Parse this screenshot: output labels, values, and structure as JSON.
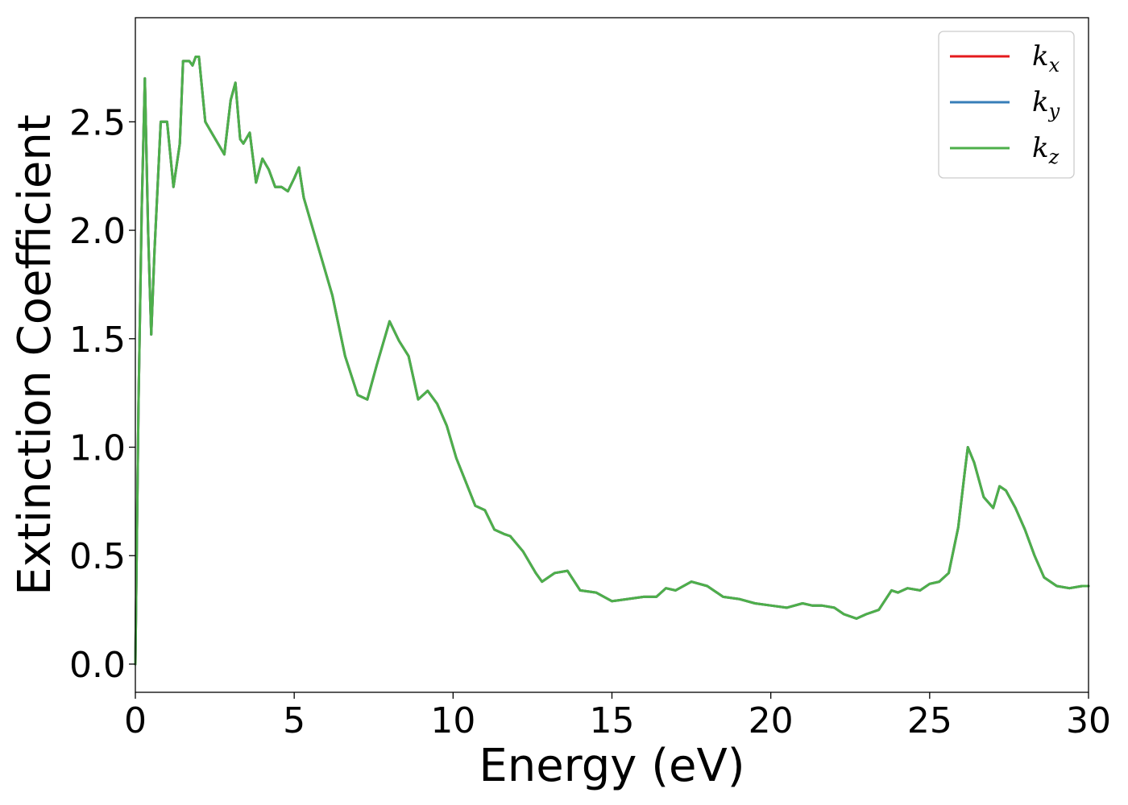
{
  "chart_data": {
    "type": "line",
    "title": "",
    "xlabel": "Energy (eV)",
    "ylabel": "Extinction Coefficient",
    "xlim": [
      0,
      30
    ],
    "ylim": [
      -0.13,
      2.98
    ],
    "xticks": [
      0,
      5,
      10,
      15,
      20,
      25,
      30
    ],
    "xtick_labels": [
      "0",
      "5",
      "10",
      "15",
      "20",
      "25",
      "30"
    ],
    "yticks": [
      0.0,
      0.5,
      1.0,
      1.5,
      2.0,
      2.5
    ],
    "ytick_labels": [
      "0.0",
      "0.5",
      "1.0",
      "1.5",
      "2.0",
      "2.5"
    ],
    "grid": false,
    "legend_position": "top-right",
    "x": [
      0,
      0.1,
      0.2,
      0.3,
      0.4,
      0.5,
      0.6,
      0.8,
      1.0,
      1.2,
      1.4,
      1.5,
      1.7,
      1.8,
      1.9,
      2.0,
      2.2,
      2.4,
      2.6,
      2.8,
      3.0,
      3.15,
      3.3,
      3.4,
      3.6,
      3.8,
      4.0,
      4.2,
      4.4,
      4.6,
      4.8,
      5.0,
      5.15,
      5.3,
      5.6,
      5.9,
      6.2,
      6.6,
      7.0,
      7.3,
      7.6,
      8.0,
      8.3,
      8.6,
      8.9,
      9.2,
      9.5,
      9.8,
      10.1,
      10.4,
      10.7,
      11.0,
      11.3,
      11.6,
      11.8,
      12.2,
      12.6,
      12.8,
      13.2,
      13.6,
      14.0,
      14.5,
      15.0,
      15.5,
      16.0,
      16.4,
      16.7,
      17.0,
      17.5,
      18.0,
      18.5,
      19.0,
      19.5,
      20.0,
      20.5,
      21.0,
      21.3,
      21.6,
      22.0,
      22.3,
      22.7,
      23.0,
      23.4,
      23.8,
      24.0,
      24.3,
      24.7,
      25.0,
      25.3,
      25.6,
      25.9,
      26.1,
      26.2,
      26.4,
      26.7,
      27.0,
      27.2,
      27.4,
      27.7,
      28.0,
      28.3,
      28.6,
      29.0,
      29.4,
      29.8,
      30.0
    ],
    "series": [
      {
        "name": "k_x",
        "color": "#e41a1c",
        "values": [
          0.0,
          1.2,
          2.1,
          2.7,
          2.0,
          1.52,
          1.9,
          2.5,
          2.5,
          2.2,
          2.4,
          2.78,
          2.78,
          2.76,
          2.8,
          2.8,
          2.5,
          2.45,
          2.4,
          2.35,
          2.6,
          2.68,
          2.42,
          2.4,
          2.45,
          2.22,
          2.33,
          2.28,
          2.2,
          2.2,
          2.18,
          2.24,
          2.29,
          2.15,
          2.0,
          1.85,
          1.7,
          1.42,
          1.24,
          1.22,
          1.38,
          1.58,
          1.49,
          1.42,
          1.22,
          1.26,
          1.2,
          1.1,
          0.95,
          0.84,
          0.73,
          0.71,
          0.62,
          0.6,
          0.59,
          0.52,
          0.42,
          0.38,
          0.42,
          0.43,
          0.34,
          0.33,
          0.29,
          0.3,
          0.31,
          0.31,
          0.35,
          0.34,
          0.38,
          0.36,
          0.31,
          0.3,
          0.28,
          0.27,
          0.26,
          0.28,
          0.27,
          0.27,
          0.26,
          0.23,
          0.21,
          0.23,
          0.25,
          0.34,
          0.33,
          0.35,
          0.34,
          0.37,
          0.38,
          0.42,
          0.63,
          0.88,
          1.0,
          0.93,
          0.77,
          0.72,
          0.82,
          0.8,
          0.72,
          0.62,
          0.5,
          0.4,
          0.36,
          0.35,
          0.36,
          0.36
        ]
      },
      {
        "name": "k_y",
        "color": "#377eb8",
        "values": [
          0.0,
          1.2,
          2.1,
          2.7,
          2.0,
          1.52,
          1.9,
          2.5,
          2.5,
          2.2,
          2.4,
          2.78,
          2.78,
          2.76,
          2.8,
          2.8,
          2.5,
          2.45,
          2.4,
          2.35,
          2.6,
          2.68,
          2.42,
          2.4,
          2.45,
          2.22,
          2.33,
          2.28,
          2.2,
          2.2,
          2.18,
          2.24,
          2.29,
          2.15,
          2.0,
          1.85,
          1.7,
          1.42,
          1.24,
          1.22,
          1.38,
          1.58,
          1.49,
          1.42,
          1.22,
          1.26,
          1.2,
          1.1,
          0.95,
          0.84,
          0.73,
          0.71,
          0.62,
          0.6,
          0.59,
          0.52,
          0.42,
          0.38,
          0.42,
          0.43,
          0.34,
          0.33,
          0.29,
          0.3,
          0.31,
          0.31,
          0.35,
          0.34,
          0.38,
          0.36,
          0.31,
          0.3,
          0.28,
          0.27,
          0.26,
          0.28,
          0.27,
          0.27,
          0.26,
          0.23,
          0.21,
          0.23,
          0.25,
          0.34,
          0.33,
          0.35,
          0.34,
          0.37,
          0.38,
          0.42,
          0.63,
          0.88,
          1.0,
          0.93,
          0.77,
          0.72,
          0.82,
          0.8,
          0.72,
          0.62,
          0.5,
          0.4,
          0.36,
          0.35,
          0.36,
          0.36
        ]
      },
      {
        "name": "k_z",
        "color": "#4daf4a",
        "values": [
          0.0,
          1.2,
          2.1,
          2.7,
          2.0,
          1.52,
          1.9,
          2.5,
          2.5,
          2.2,
          2.4,
          2.78,
          2.78,
          2.76,
          2.8,
          2.8,
          2.5,
          2.45,
          2.4,
          2.35,
          2.6,
          2.68,
          2.42,
          2.4,
          2.45,
          2.22,
          2.33,
          2.28,
          2.2,
          2.2,
          2.18,
          2.24,
          2.29,
          2.15,
          2.0,
          1.85,
          1.7,
          1.42,
          1.24,
          1.22,
          1.38,
          1.58,
          1.49,
          1.42,
          1.22,
          1.26,
          1.2,
          1.1,
          0.95,
          0.84,
          0.73,
          0.71,
          0.62,
          0.6,
          0.59,
          0.52,
          0.42,
          0.38,
          0.42,
          0.43,
          0.34,
          0.33,
          0.29,
          0.3,
          0.31,
          0.31,
          0.35,
          0.34,
          0.38,
          0.36,
          0.31,
          0.3,
          0.28,
          0.27,
          0.26,
          0.28,
          0.27,
          0.27,
          0.26,
          0.23,
          0.21,
          0.23,
          0.25,
          0.34,
          0.33,
          0.35,
          0.34,
          0.37,
          0.38,
          0.42,
          0.63,
          0.88,
          1.0,
          0.93,
          0.77,
          0.72,
          0.82,
          0.8,
          0.72,
          0.62,
          0.5,
          0.4,
          0.36,
          0.35,
          0.36,
          0.36
        ]
      }
    ],
    "legend": [
      {
        "base": "k",
        "sub": "x",
        "color": "#e41a1c"
      },
      {
        "base": "k",
        "sub": "y",
        "color": "#377eb8"
      },
      {
        "base": "k",
        "sub": "z",
        "color": "#4daf4a"
      }
    ]
  }
}
